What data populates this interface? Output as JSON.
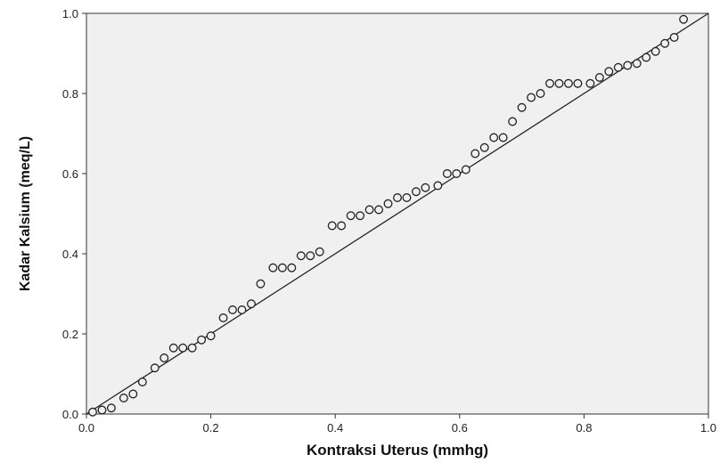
{
  "chart_data": {
    "type": "scatter",
    "title": "",
    "xlabel": "Kontraksi Uterus (mmhg)",
    "ylabel": "Kadar Kalsium (meq/L)",
    "xlim": [
      0.0,
      1.0
    ],
    "ylim": [
      0.0,
      1.0
    ],
    "x_ticks": [
      "0.0",
      "0.2",
      "0.4",
      "0.6",
      "0.8",
      "1.0"
    ],
    "y_ticks": [
      "0.0",
      "0.2",
      "0.4",
      "0.6",
      "0.8",
      "1.0"
    ],
    "grid": false,
    "legend": "none",
    "reference_line": {
      "from": [
        0.0,
        0.0
      ],
      "to": [
        1.0,
        1.0
      ]
    },
    "colors": {
      "plot_background": "#f0f0f0",
      "marker_stroke": "#222222",
      "line": "#222222"
    },
    "series": [
      {
        "marker": "open-circle",
        "points": [
          [
            0.01,
            0.005
          ],
          [
            0.025,
            0.01
          ],
          [
            0.04,
            0.015
          ],
          [
            0.06,
            0.04
          ],
          [
            0.075,
            0.05
          ],
          [
            0.09,
            0.08
          ],
          [
            0.11,
            0.115
          ],
          [
            0.125,
            0.14
          ],
          [
            0.14,
            0.165
          ],
          [
            0.155,
            0.165
          ],
          [
            0.17,
            0.165
          ],
          [
            0.185,
            0.185
          ],
          [
            0.2,
            0.195
          ],
          [
            0.22,
            0.24
          ],
          [
            0.235,
            0.26
          ],
          [
            0.25,
            0.26
          ],
          [
            0.265,
            0.275
          ],
          [
            0.28,
            0.325
          ],
          [
            0.3,
            0.365
          ],
          [
            0.315,
            0.365
          ],
          [
            0.33,
            0.365
          ],
          [
            0.345,
            0.395
          ],
          [
            0.36,
            0.395
          ],
          [
            0.375,
            0.405
          ],
          [
            0.395,
            0.47
          ],
          [
            0.41,
            0.47
          ],
          [
            0.425,
            0.495
          ],
          [
            0.44,
            0.495
          ],
          [
            0.455,
            0.51
          ],
          [
            0.47,
            0.51
          ],
          [
            0.485,
            0.525
          ],
          [
            0.5,
            0.54
          ],
          [
            0.515,
            0.54
          ],
          [
            0.53,
            0.555
          ],
          [
            0.545,
            0.565
          ],
          [
            0.565,
            0.57
          ],
          [
            0.58,
            0.6
          ],
          [
            0.595,
            0.6
          ],
          [
            0.61,
            0.61
          ],
          [
            0.625,
            0.65
          ],
          [
            0.64,
            0.665
          ],
          [
            0.655,
            0.69
          ],
          [
            0.67,
            0.69
          ],
          [
            0.685,
            0.73
          ],
          [
            0.7,
            0.765
          ],
          [
            0.715,
            0.79
          ],
          [
            0.73,
            0.8
          ],
          [
            0.745,
            0.825
          ],
          [
            0.76,
            0.825
          ],
          [
            0.775,
            0.825
          ],
          [
            0.79,
            0.825
          ],
          [
            0.81,
            0.825
          ],
          [
            0.825,
            0.84
          ],
          [
            0.84,
            0.855
          ],
          [
            0.855,
            0.865
          ],
          [
            0.87,
            0.87
          ],
          [
            0.885,
            0.875
          ],
          [
            0.9,
            0.89
          ],
          [
            0.915,
            0.905
          ],
          [
            0.93,
            0.925
          ],
          [
            0.945,
            0.94
          ],
          [
            0.96,
            0.985
          ]
        ]
      }
    ]
  }
}
